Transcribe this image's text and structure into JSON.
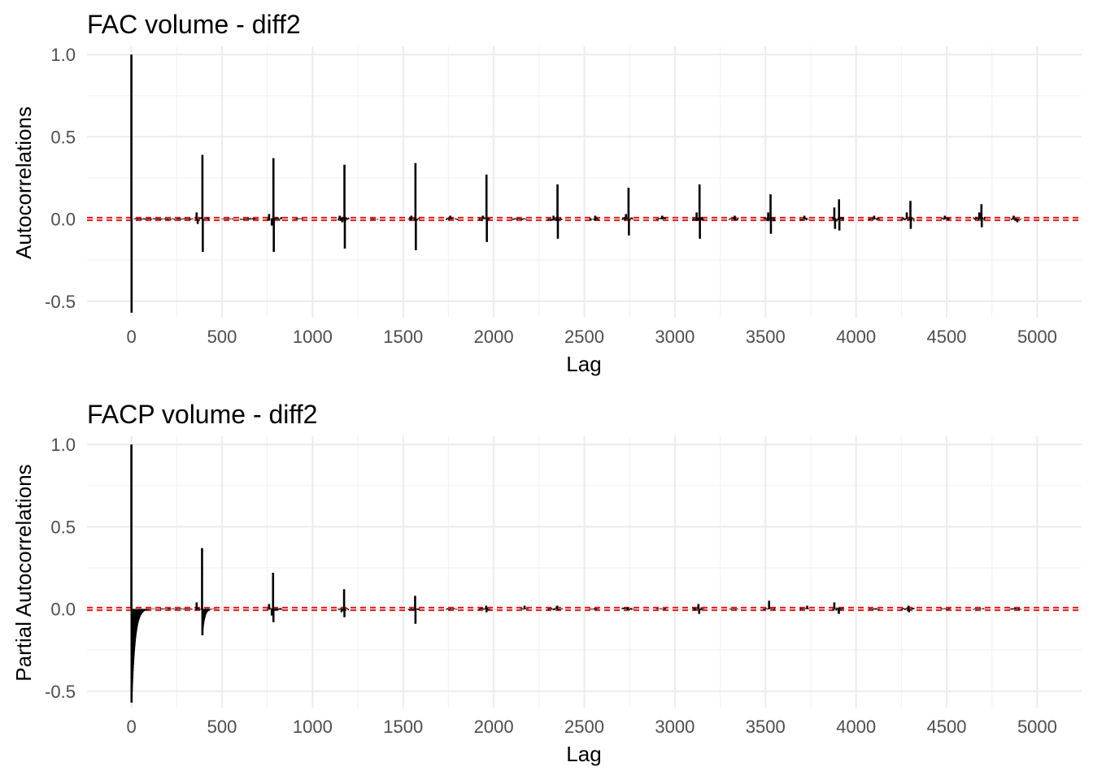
{
  "chart_data": [
    {
      "type": "bar",
      "title": "FAC volume - diff2",
      "xlabel": "Lag",
      "ylabel": "Autocorrelations",
      "xlim": [
        -245,
        5245
      ],
      "ylim": [
        -0.6,
        1.05
      ],
      "x_ticks": [
        0,
        500,
        1000,
        1500,
        2000,
        2500,
        3000,
        3500,
        4000,
        4500,
        5000
      ],
      "x_tick_labels": [
        "0",
        "500",
        "1000",
        "1500",
        "2000",
        "2500",
        "3000",
        "3500",
        "4000",
        "4500",
        "5000"
      ],
      "y_ticks": [
        -0.5,
        0.0,
        0.5,
        1.0
      ],
      "y_tick_labels": [
        "-0.5",
        "0.0",
        "0.5",
        "1.0"
      ],
      "grid": true,
      "confidence_band": {
        "lower": -0.008,
        "upper": 0.008,
        "color": "#e41a1c",
        "style": "dashed"
      },
      "bar_color": "#000000",
      "spikes": [
        {
          "x": 0,
          "y": 1.0
        },
        {
          "x": 1,
          "y": -0.57
        },
        {
          "x": 360,
          "y": 0.04
        },
        {
          "x": 366,
          "y": -0.03
        },
        {
          "x": 392,
          "y": 0.39
        },
        {
          "x": 394,
          "y": -0.2
        },
        {
          "x": 760,
          "y": 0.03
        },
        {
          "x": 775,
          "y": -0.04
        },
        {
          "x": 784,
          "y": 0.37
        },
        {
          "x": 786,
          "y": -0.2
        },
        {
          "x": 1150,
          "y": 0.02
        },
        {
          "x": 1164,
          "y": -0.02
        },
        {
          "x": 1176,
          "y": 0.33
        },
        {
          "x": 1178,
          "y": -0.18
        },
        {
          "x": 1545,
          "y": 0.02
        },
        {
          "x": 1568,
          "y": 0.34
        },
        {
          "x": 1570,
          "y": -0.19
        },
        {
          "x": 1760,
          "y": 0.02
        },
        {
          "x": 1940,
          "y": 0.02
        },
        {
          "x": 1960,
          "y": 0.27
        },
        {
          "x": 1962,
          "y": -0.14
        },
        {
          "x": 2330,
          "y": 0.02
        },
        {
          "x": 2352,
          "y": 0.21
        },
        {
          "x": 2354,
          "y": -0.12
        },
        {
          "x": 2560,
          "y": 0.02
        },
        {
          "x": 2730,
          "y": 0.03
        },
        {
          "x": 2744,
          "y": 0.19
        },
        {
          "x": 2746,
          "y": -0.1
        },
        {
          "x": 2930,
          "y": 0.02
        },
        {
          "x": 3120,
          "y": 0.04
        },
        {
          "x": 3136,
          "y": 0.21
        },
        {
          "x": 3138,
          "y": -0.12
        },
        {
          "x": 3330,
          "y": 0.02
        },
        {
          "x": 3515,
          "y": 0.04
        },
        {
          "x": 3528,
          "y": 0.15
        },
        {
          "x": 3530,
          "y": -0.09
        },
        {
          "x": 3715,
          "y": 0.02
        },
        {
          "x": 3880,
          "y": 0.07
        },
        {
          "x": 3884,
          "y": -0.06
        },
        {
          "x": 3906,
          "y": 0.12
        },
        {
          "x": 3908,
          "y": -0.07
        },
        {
          "x": 4100,
          "y": 0.02
        },
        {
          "x": 4280,
          "y": 0.04
        },
        {
          "x": 4300,
          "y": 0.11
        },
        {
          "x": 4302,
          "y": -0.06
        },
        {
          "x": 4490,
          "y": 0.02
        },
        {
          "x": 4680,
          "y": 0.04
        },
        {
          "x": 4692,
          "y": 0.09
        },
        {
          "x": 4694,
          "y": -0.05
        },
        {
          "x": 4870,
          "y": 0.02
        },
        {
          "x": 4890,
          "y": -0.02
        }
      ],
      "noise_clusters": [
        {
          "from": 15,
          "to": 340,
          "amp": 0.006
        },
        {
          "from": 355,
          "to": 430,
          "amp": 0.012
        },
        {
          "from": 500,
          "to": 560,
          "amp": 0.005
        },
        {
          "from": 600,
          "to": 700,
          "amp": 0.006
        },
        {
          "from": 750,
          "to": 830,
          "amp": 0.012
        },
        {
          "from": 900,
          "to": 950,
          "amp": 0.005
        },
        {
          "from": 1140,
          "to": 1200,
          "amp": 0.012
        },
        {
          "from": 1320,
          "to": 1360,
          "amp": 0.005
        },
        {
          "from": 1530,
          "to": 1590,
          "amp": 0.012
        },
        {
          "from": 1740,
          "to": 1800,
          "amp": 0.008
        },
        {
          "from": 1920,
          "to": 1980,
          "amp": 0.012
        },
        {
          "from": 2100,
          "to": 2180,
          "amp": 0.006
        },
        {
          "from": 2300,
          "to": 2380,
          "amp": 0.012
        },
        {
          "from": 2530,
          "to": 2580,
          "amp": 0.01
        },
        {
          "from": 2710,
          "to": 2770,
          "amp": 0.012
        },
        {
          "from": 2900,
          "to": 2950,
          "amp": 0.01
        },
        {
          "from": 3100,
          "to": 3160,
          "amp": 0.014
        },
        {
          "from": 3300,
          "to": 3350,
          "amp": 0.01
        },
        {
          "from": 3490,
          "to": 3550,
          "amp": 0.014
        },
        {
          "from": 3690,
          "to": 3740,
          "amp": 0.01
        },
        {
          "from": 3870,
          "to": 3930,
          "amp": 0.016
        },
        {
          "from": 4070,
          "to": 4130,
          "amp": 0.008
        },
        {
          "from": 4250,
          "to": 4320,
          "amp": 0.014
        },
        {
          "from": 4470,
          "to": 4520,
          "amp": 0.008
        },
        {
          "from": 4650,
          "to": 4710,
          "amp": 0.014
        },
        {
          "from": 4850,
          "to": 4910,
          "amp": 0.01
        }
      ]
    },
    {
      "type": "bar",
      "title": "FACP volume - diff2",
      "xlabel": "Lag",
      "ylabel": "Partial Autocorrelations",
      "xlim": [
        -245,
        5245
      ],
      "ylim": [
        -0.6,
        1.05
      ],
      "x_ticks": [
        0,
        500,
        1000,
        1500,
        2000,
        2500,
        3000,
        3500,
        4000,
        4500,
        5000
      ],
      "x_tick_labels": [
        "0",
        "500",
        "1000",
        "1500",
        "2000",
        "2500",
        "3000",
        "3500",
        "4000",
        "4500",
        "5000"
      ],
      "y_ticks": [
        -0.5,
        0.0,
        0.5,
        1.0
      ],
      "y_tick_labels": [
        "-0.5",
        "0.0",
        "0.5",
        "1.0"
      ],
      "grid": true,
      "confidence_band": {
        "lower": -0.008,
        "upper": 0.008,
        "color": "#e41a1c",
        "style": "dashed"
      },
      "bar_color": "#000000",
      "spikes": [
        {
          "x": 0,
          "y": 1.0
        },
        {
          "x": 1,
          "y": -0.57
        },
        {
          "x": 360,
          "y": 0.04
        },
        {
          "x": 390,
          "y": 0.37
        },
        {
          "x": 392,
          "y": -0.16
        },
        {
          "x": 760,
          "y": 0.03
        },
        {
          "x": 775,
          "y": -0.04
        },
        {
          "x": 782,
          "y": 0.22
        },
        {
          "x": 784,
          "y": -0.08
        },
        {
          "x": 1160,
          "y": -0.02
        },
        {
          "x": 1174,
          "y": 0.12
        },
        {
          "x": 1176,
          "y": -0.05
        },
        {
          "x": 1566,
          "y": 0.08
        },
        {
          "x": 1568,
          "y": -0.09
        },
        {
          "x": 1958,
          "y": 0.02
        },
        {
          "x": 1960,
          "y": -0.02
        },
        {
          "x": 2170,
          "y": 0.02
        },
        {
          "x": 2350,
          "y": 0.02
        },
        {
          "x": 2740,
          "y": 0.01
        },
        {
          "x": 3130,
          "y": 0.03
        },
        {
          "x": 3134,
          "y": -0.03
        },
        {
          "x": 3520,
          "y": 0.05
        },
        {
          "x": 3730,
          "y": 0.02
        },
        {
          "x": 3880,
          "y": 0.04
        },
        {
          "x": 3905,
          "y": -0.03
        },
        {
          "x": 4290,
          "y": 0.02
        },
        {
          "x": 4292,
          "y": -0.02
        }
      ],
      "decay_envelopes": [
        {
          "start": 2,
          "end": 160,
          "amp": -0.56,
          "tau": 18
        },
        {
          "start": 393,
          "end": 480,
          "amp": -0.14,
          "tau": 12
        }
      ],
      "noise_clusters": [
        {
          "from": 160,
          "to": 340,
          "amp": 0.004
        },
        {
          "from": 355,
          "to": 430,
          "amp": 0.008
        },
        {
          "from": 750,
          "to": 830,
          "amp": 0.008
        },
        {
          "from": 1140,
          "to": 1200,
          "amp": 0.008
        },
        {
          "from": 1530,
          "to": 1590,
          "amp": 0.008
        },
        {
          "from": 1740,
          "to": 1800,
          "amp": 0.006
        },
        {
          "from": 1920,
          "to": 1980,
          "amp": 0.008
        },
        {
          "from": 2150,
          "to": 2190,
          "amp": 0.006
        },
        {
          "from": 2300,
          "to": 2380,
          "amp": 0.008
        },
        {
          "from": 2530,
          "to": 2580,
          "amp": 0.005
        },
        {
          "from": 2710,
          "to": 2770,
          "amp": 0.008
        },
        {
          "from": 2900,
          "to": 2950,
          "amp": 0.005
        },
        {
          "from": 3100,
          "to": 3160,
          "amp": 0.01
        },
        {
          "from": 3300,
          "to": 3350,
          "amp": 0.005
        },
        {
          "from": 3490,
          "to": 3550,
          "amp": 0.008
        },
        {
          "from": 3690,
          "to": 3740,
          "amp": 0.008
        },
        {
          "from": 3870,
          "to": 3930,
          "amp": 0.01
        },
        {
          "from": 4070,
          "to": 4130,
          "amp": 0.006
        },
        {
          "from": 4250,
          "to": 4320,
          "amp": 0.008
        },
        {
          "from": 4470,
          "to": 4520,
          "amp": 0.006
        },
        {
          "from": 4650,
          "to": 4710,
          "amp": 0.006
        },
        {
          "from": 4850,
          "to": 4910,
          "amp": 0.006
        }
      ]
    }
  ]
}
